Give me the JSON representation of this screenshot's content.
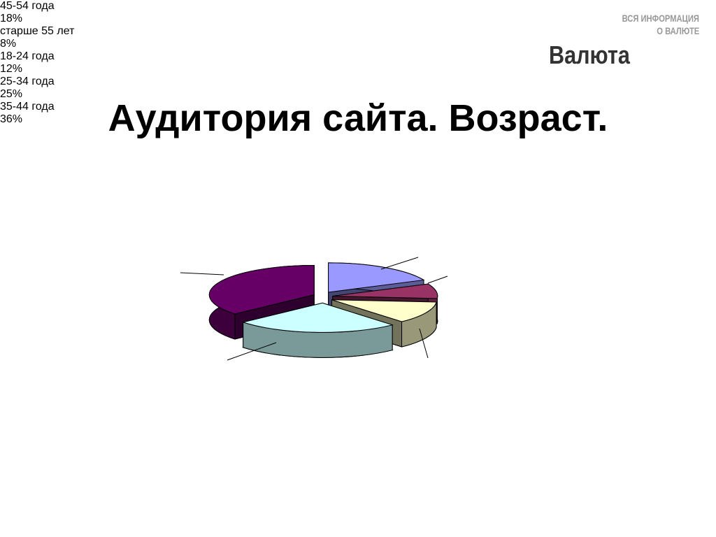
{
  "logo": {
    "tagline": [
      "ВСЯ ИНФОРМАЦИЯ",
      "О ВАЛЮТЕ"
    ],
    "name": "Валюта"
  },
  "chart_data": {
    "type": "pie",
    "title": "Аудитория сайта. Возраст.",
    "categories": [
      "45-54 года",
      "старше 55 лет",
      "18-24 года",
      "25-34 года",
      "35-44 года"
    ],
    "values": [
      18,
      8,
      12,
      25,
      36
    ],
    "value_labels": [
      "18%",
      "8%",
      "12%",
      "25%",
      "36%"
    ],
    "colors": [
      "#9999ff",
      "#993366",
      "#ffffcc",
      "#ccffff",
      "#660066"
    ]
  }
}
